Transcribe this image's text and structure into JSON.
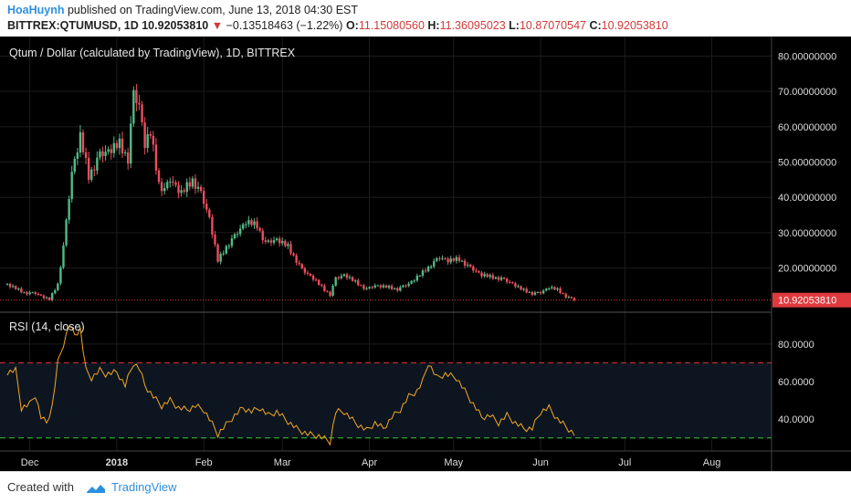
{
  "header": {
    "author": "HoaHuynh",
    "published_text": "published on TradingView.com, June 13, 2018 04:30 EST",
    "symbol": "BITTREX:QTUMUSD, 1D",
    "last": "10.92053810",
    "change": "−0.13518463 (−1.22%)",
    "o_label": "O:",
    "o_value": "11.15080560",
    "h_label": "H:",
    "h_value": "11.36095023",
    "l_label": "L:",
    "l_value": "10.87070547",
    "c_label": "C:",
    "c_value": "10.92053810"
  },
  "footer": {
    "created_with": "Created with",
    "brand": "TradingView"
  },
  "colors": {
    "background": "#000000",
    "up": "#53b987",
    "down": "#eb4d5c",
    "rsi_line": "#f5a623",
    "upper_band": "#e03030",
    "lower_band": "#33cc33",
    "price_tag": "#e0393e",
    "grid": "#1c1c1c",
    "axis_text": "#dddddd"
  },
  "chart_data": [
    {
      "type": "candlestick",
      "title": "Qtum / Dollar (calculated by TradingView), 1D, BITTREX",
      "y_ticks": [
        "80.00000000",
        "70.00000000",
        "60.00000000",
        "50.00000000",
        "40.00000000",
        "30.00000000",
        "20.00000000"
      ],
      "y_tick_values": [
        80,
        70,
        60,
        50,
        40,
        30,
        20
      ],
      "ylim": [
        8,
        84
      ],
      "last_price_label": "10.92053810",
      "last_price": 10.92,
      "x_start": "2017-11-23",
      "x_end": "2018-08-20",
      "x_ticks": [
        "Dec",
        "2018",
        "Feb",
        "Mar",
        "Apr",
        "May",
        "Jun",
        "Jul",
        "Aug"
      ],
      "x_tick_dates": [
        "2017-12-01",
        "2018-01-01",
        "2018-02-01",
        "2018-03-01",
        "2018-04-01",
        "2018-05-01",
        "2018-06-01",
        "2018-07-01",
        "2018-08-01"
      ],
      "close_anchors": [
        [
          "2017-11-23",
          15.3
        ],
        [
          "2017-11-29",
          13.0
        ],
        [
          "2017-12-03",
          12.8
        ],
        [
          "2017-12-08",
          11.0
        ],
        [
          "2017-12-11",
          15.5
        ],
        [
          "2017-12-13",
          26.0
        ],
        [
          "2017-12-16",
          47.0
        ],
        [
          "2017-12-19",
          57.0
        ],
        [
          "2017-12-22",
          46.0
        ],
        [
          "2017-12-26",
          52.0
        ],
        [
          "2017-12-29",
          53.0
        ],
        [
          "2018-01-02",
          55.0
        ],
        [
          "2018-01-05",
          51.0
        ],
        [
          "2018-01-07",
          69.0
        ],
        [
          "2018-01-09",
          66.0
        ],
        [
          "2018-01-11",
          55.0
        ],
        [
          "2018-01-13",
          58.0
        ],
        [
          "2018-01-16",
          44.0
        ],
        [
          "2018-01-18",
          42.0
        ],
        [
          "2018-01-20",
          45.0
        ],
        [
          "2018-01-24",
          41.0
        ],
        [
          "2018-01-28",
          45.0
        ],
        [
          "2018-01-31",
          41.0
        ],
        [
          "2018-02-03",
          34.0
        ],
        [
          "2018-02-06",
          22.0
        ],
        [
          "2018-02-09",
          26.0
        ],
        [
          "2018-02-12",
          29.0
        ],
        [
          "2018-02-16",
          33.0
        ],
        [
          "2018-02-20",
          32.0
        ],
        [
          "2018-02-23",
          27.0
        ],
        [
          "2018-02-27",
          28.0
        ],
        [
          "2018-03-03",
          26.0
        ],
        [
          "2018-03-08",
          19.5
        ],
        [
          "2018-03-12",
          17.0
        ],
        [
          "2018-03-16",
          13.8
        ],
        [
          "2018-03-18",
          12.5
        ],
        [
          "2018-03-20",
          17.0
        ],
        [
          "2018-03-23",
          18.0
        ],
        [
          "2018-03-27",
          16.0
        ],
        [
          "2018-03-31",
          14.0
        ],
        [
          "2018-04-03",
          15.0
        ],
        [
          "2018-04-08",
          14.5
        ],
        [
          "2018-04-11",
          14.0
        ],
        [
          "2018-04-15",
          15.5
        ],
        [
          "2018-04-19",
          18.0
        ],
        [
          "2018-04-23",
          21.0
        ],
        [
          "2018-04-26",
          23.0
        ],
        [
          "2018-04-29",
          22.0
        ],
        [
          "2018-05-03",
          22.5
        ],
        [
          "2018-05-07",
          20.0
        ],
        [
          "2018-05-11",
          18.0
        ],
        [
          "2018-05-14",
          17.5
        ],
        [
          "2018-05-18",
          17.0
        ],
        [
          "2018-05-22",
          15.5
        ],
        [
          "2018-05-25",
          14.0
        ],
        [
          "2018-05-29",
          12.8
        ],
        [
          "2018-06-01",
          13.0
        ],
        [
          "2018-06-04",
          14.5
        ],
        [
          "2018-06-07",
          13.8
        ],
        [
          "2018-06-10",
          12.0
        ],
        [
          "2018-06-13",
          10.92
        ]
      ]
    },
    {
      "type": "line",
      "title": "RSI (14, close)",
      "series": [
        {
          "name": "RSI"
        }
      ],
      "y_ticks": [
        "80.0000",
        "60.0000",
        "40.0000"
      ],
      "y_tick_values": [
        80,
        60,
        40
      ],
      "ylim": [
        25,
        95
      ],
      "upper_band": 70,
      "lower_band": 30,
      "rsi_anchors": [
        [
          "2017-11-23",
          65
        ],
        [
          "2017-11-26",
          66
        ],
        [
          "2017-11-28",
          46
        ],
        [
          "2017-12-01",
          48
        ],
        [
          "2017-12-03",
          53
        ],
        [
          "2017-12-05",
          41
        ],
        [
          "2017-12-07",
          38
        ],
        [
          "2017-12-09",
          47
        ],
        [
          "2017-12-11",
          70
        ],
        [
          "2017-12-13",
          80
        ],
        [
          "2017-12-15",
          90
        ],
        [
          "2017-12-17",
          85
        ],
        [
          "2017-12-19",
          88
        ],
        [
          "2017-12-21",
          66
        ],
        [
          "2017-12-23",
          62
        ],
        [
          "2017-12-26",
          66
        ],
        [
          "2017-12-28",
          64
        ],
        [
          "2018-01-01",
          65
        ],
        [
          "2018-01-04",
          58
        ],
        [
          "2018-01-07",
          70
        ],
        [
          "2018-01-09",
          67
        ],
        [
          "2018-01-11",
          58
        ],
        [
          "2018-01-14",
          52
        ],
        [
          "2018-01-17",
          47
        ],
        [
          "2018-01-20",
          50
        ],
        [
          "2018-01-23",
          46
        ],
        [
          "2018-01-26",
          45
        ],
        [
          "2018-01-29",
          47
        ],
        [
          "2018-02-01",
          45
        ],
        [
          "2018-02-03",
          40
        ],
        [
          "2018-02-06",
          32
        ],
        [
          "2018-02-09",
          37
        ],
        [
          "2018-02-12",
          42
        ],
        [
          "2018-02-15",
          46
        ],
        [
          "2018-02-18",
          44
        ],
        [
          "2018-02-21",
          46
        ],
        [
          "2018-02-24",
          42
        ],
        [
          "2018-02-27",
          44
        ],
        [
          "2018-03-02",
          40
        ],
        [
          "2018-03-06",
          35
        ],
        [
          "2018-03-10",
          32
        ],
        [
          "2018-03-14",
          31
        ],
        [
          "2018-03-18",
          28
        ],
        [
          "2018-03-20",
          44
        ],
        [
          "2018-03-23",
          44
        ],
        [
          "2018-03-27",
          38
        ],
        [
          "2018-03-31",
          34
        ],
        [
          "2018-04-03",
          38
        ],
        [
          "2018-04-06",
          35
        ],
        [
          "2018-04-09",
          41
        ],
        [
          "2018-04-12",
          45
        ],
        [
          "2018-04-15",
          52
        ],
        [
          "2018-04-18",
          55
        ],
        [
          "2018-04-20",
          60
        ],
        [
          "2018-04-22",
          70
        ],
        [
          "2018-04-25",
          62
        ],
        [
          "2018-04-28",
          64
        ],
        [
          "2018-05-02",
          62
        ],
        [
          "2018-05-05",
          55
        ],
        [
          "2018-05-08",
          48
        ],
        [
          "2018-05-11",
          41
        ],
        [
          "2018-05-14",
          42
        ],
        [
          "2018-05-17",
          38
        ],
        [
          "2018-05-20",
          42
        ],
        [
          "2018-05-23",
          38
        ],
        [
          "2018-05-26",
          35
        ],
        [
          "2018-05-29",
          35
        ],
        [
          "2018-06-01",
          44
        ],
        [
          "2018-06-04",
          46
        ],
        [
          "2018-06-07",
          40
        ],
        [
          "2018-06-10",
          36
        ],
        [
          "2018-06-13",
          32
        ]
      ]
    }
  ]
}
